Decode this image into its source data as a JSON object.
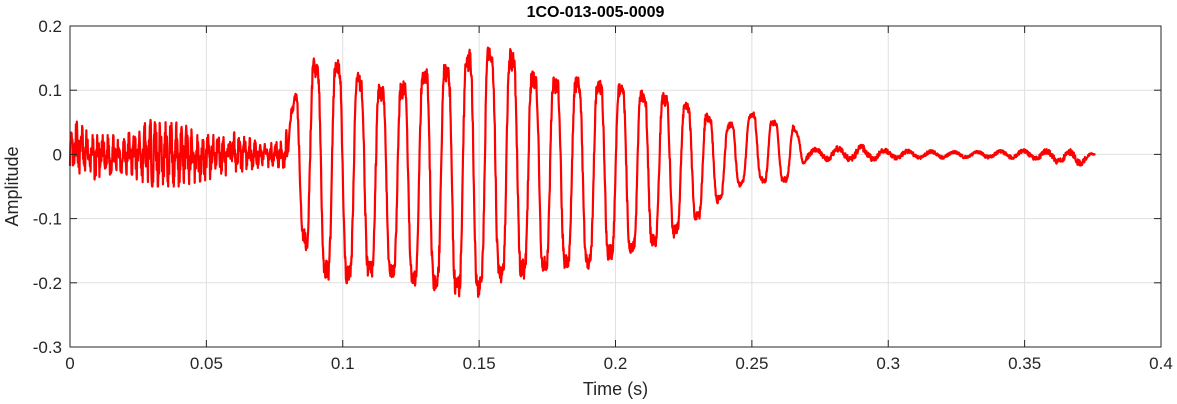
{
  "chart_data": {
    "type": "line",
    "title": "1CO-013-005-0009",
    "xlabel": "Time (s)",
    "ylabel": "Amplitude",
    "xlim": [
      0,
      0.4
    ],
    "ylim": [
      -0.3,
      0.2
    ],
    "x_ticks": [
      0,
      0.05,
      0.1,
      0.15,
      0.2,
      0.25,
      0.3,
      0.35,
      0.4
    ],
    "x_tick_labels": [
      "0",
      "0.05",
      "0.1",
      "0.15",
      "0.2",
      "0.25",
      "0.3",
      "0.35",
      "0.4"
    ],
    "y_ticks": [
      -0.3,
      -0.2,
      -0.1,
      0,
      0.1,
      0.2
    ],
    "y_tick_labels": [
      "-0.3",
      "-0.2",
      "-0.1",
      "0",
      "0.1",
      "0.2"
    ],
    "grid": true,
    "line_color": "#ff0000",
    "series": [
      {
        "x_start": 0,
        "x_end": 0.376,
        "envelope": [
          {
            "t": 0.0,
            "max": 0.03,
            "min": -0.03
          },
          {
            "t": 0.003,
            "max": 0.055,
            "min": -0.03
          },
          {
            "t": 0.008,
            "max": 0.03,
            "min": -0.04
          },
          {
            "t": 0.02,
            "max": 0.03,
            "min": -0.03
          },
          {
            "t": 0.03,
            "max": 0.055,
            "min": -0.05
          },
          {
            "t": 0.04,
            "max": 0.05,
            "min": -0.05
          },
          {
            "t": 0.05,
            "max": 0.03,
            "min": -0.04
          },
          {
            "t": 0.06,
            "max": 0.035,
            "min": -0.03
          },
          {
            "t": 0.07,
            "max": 0.02,
            "min": -0.02
          },
          {
            "t": 0.078,
            "max": 0.02,
            "min": -0.02
          },
          {
            "t": 0.082,
            "max": 0.09,
            "min": -0.08
          },
          {
            "t": 0.085,
            "max": 0.15,
            "min": -0.14
          },
          {
            "t": 0.09,
            "max": 0.16,
            "min": -0.2
          },
          {
            "t": 0.1,
            "max": 0.16,
            "min": -0.215
          },
          {
            "t": 0.11,
            "max": 0.12,
            "min": -0.2
          },
          {
            "t": 0.12,
            "max": 0.12,
            "min": -0.21
          },
          {
            "t": 0.13,
            "max": 0.15,
            "min": -0.22
          },
          {
            "t": 0.14,
            "max": 0.155,
            "min": -0.23
          },
          {
            "t": 0.148,
            "max": 0.18,
            "min": -0.24
          },
          {
            "t": 0.16,
            "max": 0.18,
            "min": -0.21
          },
          {
            "t": 0.17,
            "max": 0.14,
            "min": -0.2
          },
          {
            "t": 0.18,
            "max": 0.13,
            "min": -0.185
          },
          {
            "t": 0.19,
            "max": 0.13,
            "min": -0.19
          },
          {
            "t": 0.2,
            "max": 0.12,
            "min": -0.17
          },
          {
            "t": 0.21,
            "max": 0.11,
            "min": -0.16
          },
          {
            "t": 0.22,
            "max": 0.1,
            "min": -0.14
          },
          {
            "t": 0.23,
            "max": 0.08,
            "min": -0.11
          },
          {
            "t": 0.24,
            "max": 0.05,
            "min": -0.07
          },
          {
            "t": 0.25,
            "max": 0.07,
            "min": -0.04
          },
          {
            "t": 0.255,
            "max": 0.06,
            "min": -0.05
          },
          {
            "t": 0.265,
            "max": 0.05,
            "min": -0.045
          },
          {
            "t": 0.27,
            "max": 0.01,
            "min": -0.01
          },
          {
            "t": 0.29,
            "max": 0.015,
            "min": -0.012
          },
          {
            "t": 0.3,
            "max": 0.008,
            "min": -0.008
          },
          {
            "t": 0.33,
            "max": 0.005,
            "min": -0.006
          },
          {
            "t": 0.35,
            "max": 0.008,
            "min": -0.007
          },
          {
            "t": 0.37,
            "max": 0.008,
            "min": -0.02
          },
          {
            "t": 0.376,
            "max": 0.0,
            "min": 0.0
          }
        ]
      }
    ]
  }
}
